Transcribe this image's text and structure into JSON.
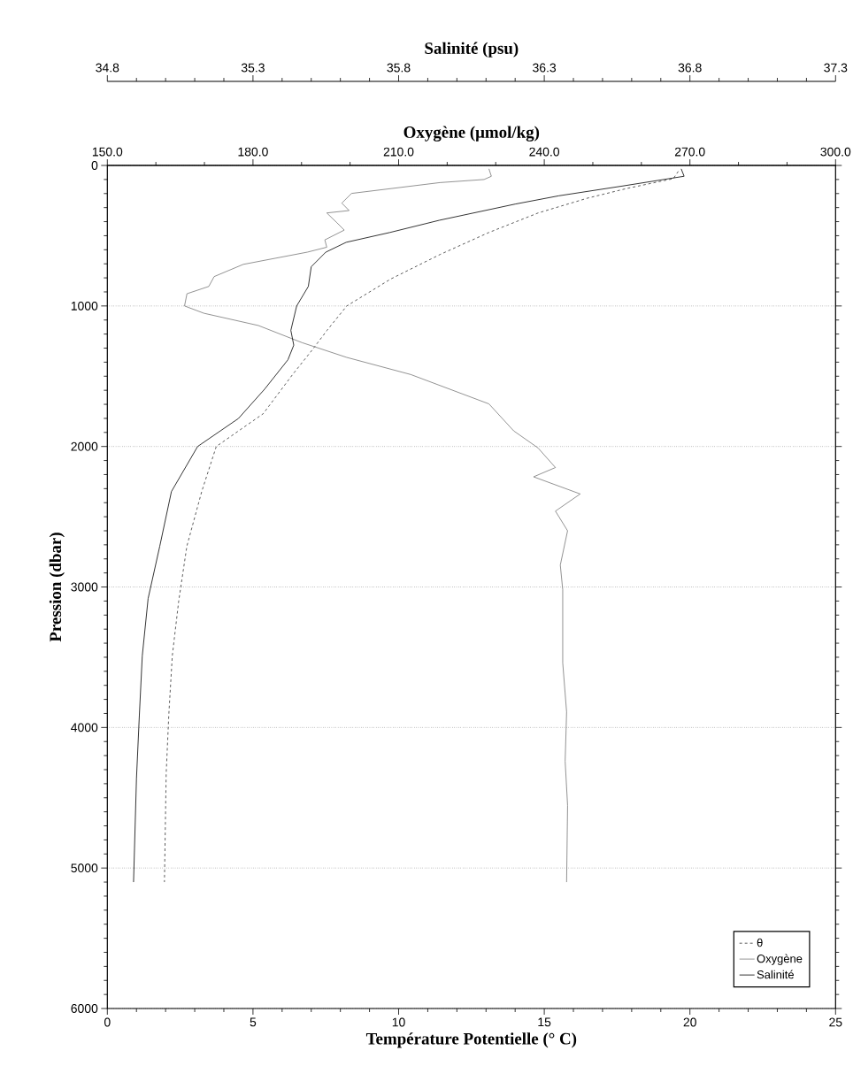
{
  "chart_data": [
    {
      "type": "line",
      "xlabel": "Température Potentielle (° C)",
      "ylabel": "Pression (dbar)",
      "x2label": "Oxygène (μmol/kg)",
      "xlim": [
        0,
        25
      ],
      "xticks": [
        0,
        5,
        10,
        15,
        20,
        25
      ],
      "x2lim": [
        150,
        300
      ],
      "x2ticks": [
        {
          "value": 150,
          "label": "150.0"
        },
        {
          "value": 180,
          "label": "180.0"
        },
        {
          "value": 210,
          "label": "210.0"
        },
        {
          "value": 240,
          "label": "240.0"
        },
        {
          "value": 270,
          "label": "270.0"
        },
        {
          "value": 300,
          "label": "300.0"
        }
      ],
      "ylim": [
        6000,
        0
      ],
      "yticks": [
        0,
        1000,
        2000,
        3000,
        4000,
        5000,
        6000
      ],
      "grid": "y",
      "legend": "bottom right",
      "marker": "none",
      "series": [
        {
          "name": "θ",
          "color": "#333333",
          "line_style": "dashed",
          "x": [
            19.6,
            19.43,
            17.83,
            16.48,
            14.79,
            13.1,
            11.42,
            9.73,
            8.22,
            7.54,
            7.03,
            6.36,
            5.35,
            3.74,
            3.24,
            2.73,
            2.45,
            2.23,
            2.11,
            2.02,
            1.96
          ],
          "values": [
            42,
            94,
            164,
            233,
            338,
            477,
            634,
            808,
            1000,
            1174,
            1314,
            1488,
            1767,
            2000,
            2321,
            2710,
            3100,
            3490,
            3910,
            4330,
            5100
          ]
        },
        {
          "name": "Oxygène",
          "color": "#777777",
          "line_style": "solid",
          "axis": "x2",
          "x": [
            228.6,
            229.1,
            227.6,
            218.5,
            200.3,
            198.3,
            199.8,
            195.2,
            197.3,
            198.8,
            194.8,
            195.2,
            191.2,
            178.0,
            172.0,
            170.9,
            166.4,
            165.9,
            169.9,
            181.1,
            190.1,
            199.3,
            212.5,
            228.6,
            233.7,
            238.7,
            242.3,
            237.8,
            247.4,
            242.3,
            244.8,
            243.3,
            243.8,
            243.8,
            244.6,
            244.3,
            244.8,
            244.6
          ],
          "values": [
            24,
            77,
            100,
            122,
            199,
            268,
            321,
            338,
            408,
            460,
            530,
            582,
            617,
            704,
            791,
            861,
            913,
            1000,
            1052,
            1139,
            1261,
            1366,
            1488,
            1697,
            1889,
            2010,
            2150,
            2216,
            2338,
            2460,
            2600,
            2844,
            3020,
            3540,
            3890,
            4240,
            4555,
            5100
          ]
        }
      ]
    },
    {
      "type": "line",
      "xlabel": "Salinité (psu)",
      "xlim": [
        34.8,
        37.3
      ],
      "xticks": [
        34.8,
        35.3,
        35.8,
        36.3,
        36.8,
        37.3
      ],
      "ylim": [
        6000,
        0
      ],
      "tick_labels": "x",
      "marker": "none",
      "series": [
        {
          "name": "Salinité",
          "color": "#000000",
          "line_style": "solid",
          "x": [
            36.77,
            36.78,
            36.57,
            36.35,
            36.2,
            35.94,
            35.77,
            35.62,
            35.55,
            35.5,
            35.49,
            35.45,
            35.43,
            35.44,
            35.42,
            35.34,
            35.25,
            35.11,
            35.02,
            34.98,
            34.94,
            34.92,
            34.91,
            34.9,
            34.89
          ],
          "values": [
            24,
            77,
            146,
            216,
            275,
            390,
            477,
            547,
            617,
            721,
            861,
            1000,
            1174,
            1279,
            1383,
            1592,
            1801,
            2000,
            2321,
            2710,
            3082,
            3490,
            3910,
            4364,
            5100
          ]
        }
      ]
    }
  ]
}
